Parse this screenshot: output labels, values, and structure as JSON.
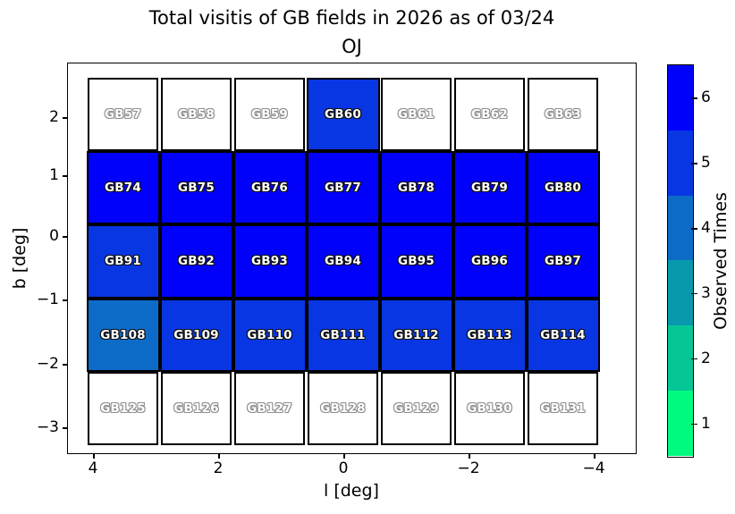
{
  "title": {
    "line1": "Total visitis of GB fields in 2026 as of 03/24",
    "line2": "OJ"
  },
  "chart_data": {
    "type": "heatmap",
    "title": "Total visitis of GB fields in 2026 as of 03/24 OJ",
    "xlabel": "l [deg]",
    "ylabel": "b [deg]",
    "x_ticks": [
      4,
      2,
      0,
      -2,
      -4
    ],
    "x_tick_labels": [
      "4",
      "2",
      "0",
      "−2",
      "−4"
    ],
    "x_axis_reversed": true,
    "y_ticks": [
      2,
      1,
      0,
      -1,
      -2,
      -3
    ],
    "y_tick_labels": [
      "2",
      "1",
      "0",
      "−1",
      "−2",
      "−3"
    ],
    "grid_shape": {
      "rows": 5,
      "cols": 7
    },
    "colorbar": {
      "label": "Observed Times",
      "tick_values_top_to_bottom": [
        6,
        5,
        4,
        3,
        2,
        1
      ],
      "tick_labels_top_to_bottom": [
        "6",
        "5",
        "4",
        "3",
        "2",
        "1"
      ],
      "segment_colors_top_to_bottom": [
        "#0101FB",
        "#0836E2",
        "#0D6BC8",
        "#0899AC",
        "#06C695",
        "#00FA80"
      ]
    },
    "value_colors": {
      "6": "#0101FB",
      "5": "#0836E2",
      "4": "#0D6BC8",
      "3": "#0899AC",
      "2": "#06C695",
      "1": "#00FA80",
      "0": "#FFFFFF"
    },
    "rows": [
      {
        "fields": [
          "GB57",
          "GB58",
          "GB59",
          "GB60",
          "GB61",
          "GB62",
          "GB63"
        ],
        "observed_times": [
          0,
          0,
          0,
          5,
          0,
          0,
          0
        ]
      },
      {
        "fields": [
          "GB74",
          "GB75",
          "GB76",
          "GB77",
          "GB78",
          "GB79",
          "GB80"
        ],
        "observed_times": [
          6,
          6,
          6,
          6,
          6,
          6,
          6
        ]
      },
      {
        "fields": [
          "GB91",
          "GB92",
          "GB93",
          "GB94",
          "GB95",
          "GB96",
          "GB97"
        ],
        "observed_times": [
          5,
          6,
          6,
          6,
          6,
          6,
          6
        ]
      },
      {
        "fields": [
          "GB108",
          "GB109",
          "GB110",
          "GB111",
          "GB112",
          "GB113",
          "GB114"
        ],
        "observed_times": [
          4,
          5,
          5,
          5,
          5,
          5,
          5
        ]
      },
      {
        "fields": [
          "GB125",
          "GB126",
          "GB127",
          "GB128",
          "GB129",
          "GB130",
          "GB131"
        ],
        "observed_times": [
          0,
          0,
          0,
          0,
          0,
          0,
          0
        ]
      }
    ]
  }
}
